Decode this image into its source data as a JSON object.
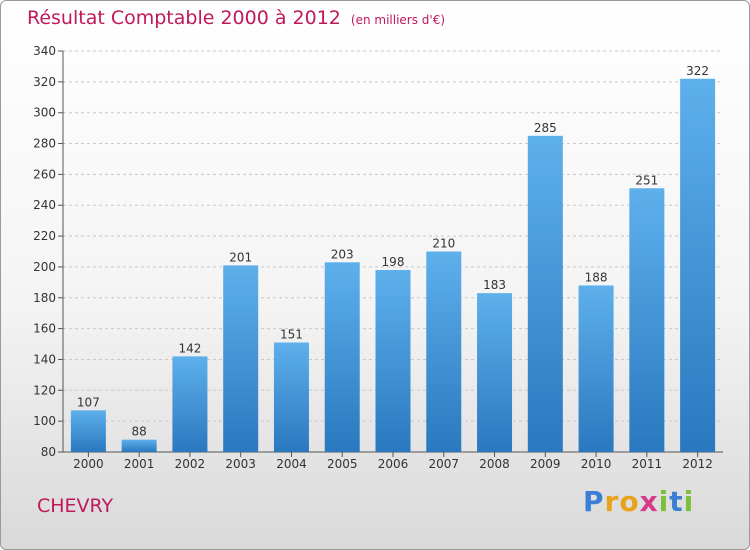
{
  "chart_data": {
    "type": "bar",
    "title": "Résultat Comptable 2000 à 2012",
    "subtitle": "(en milliers d'€)",
    "xlabel": "",
    "ylabel": "",
    "categories": [
      "2000",
      "2001",
      "2002",
      "2003",
      "2004",
      "2005",
      "2006",
      "2007",
      "2008",
      "2009",
      "2010",
      "2011",
      "2012"
    ],
    "values": [
      107,
      88,
      142,
      201,
      151,
      203,
      198,
      210,
      183,
      285,
      188,
      251,
      322
    ],
    "ylim": [
      80,
      340
    ],
    "yticks": [
      80,
      100,
      120,
      140,
      160,
      180,
      200,
      220,
      240,
      260,
      280,
      300,
      320,
      340
    ],
    "grid": true,
    "bar_color": "#3d8fd8"
  },
  "footer": {
    "commune": "CHEVRY",
    "brand": {
      "letters": [
        "P",
        "r",
        "o",
        "x",
        "i",
        "t",
        "i"
      ],
      "colors": [
        "#3a7fd5",
        "#e8a21c",
        "#e8a21c",
        "#d83a8a",
        "#7cbf3a",
        "#3a7fd5",
        "#7cbf3a"
      ]
    }
  }
}
